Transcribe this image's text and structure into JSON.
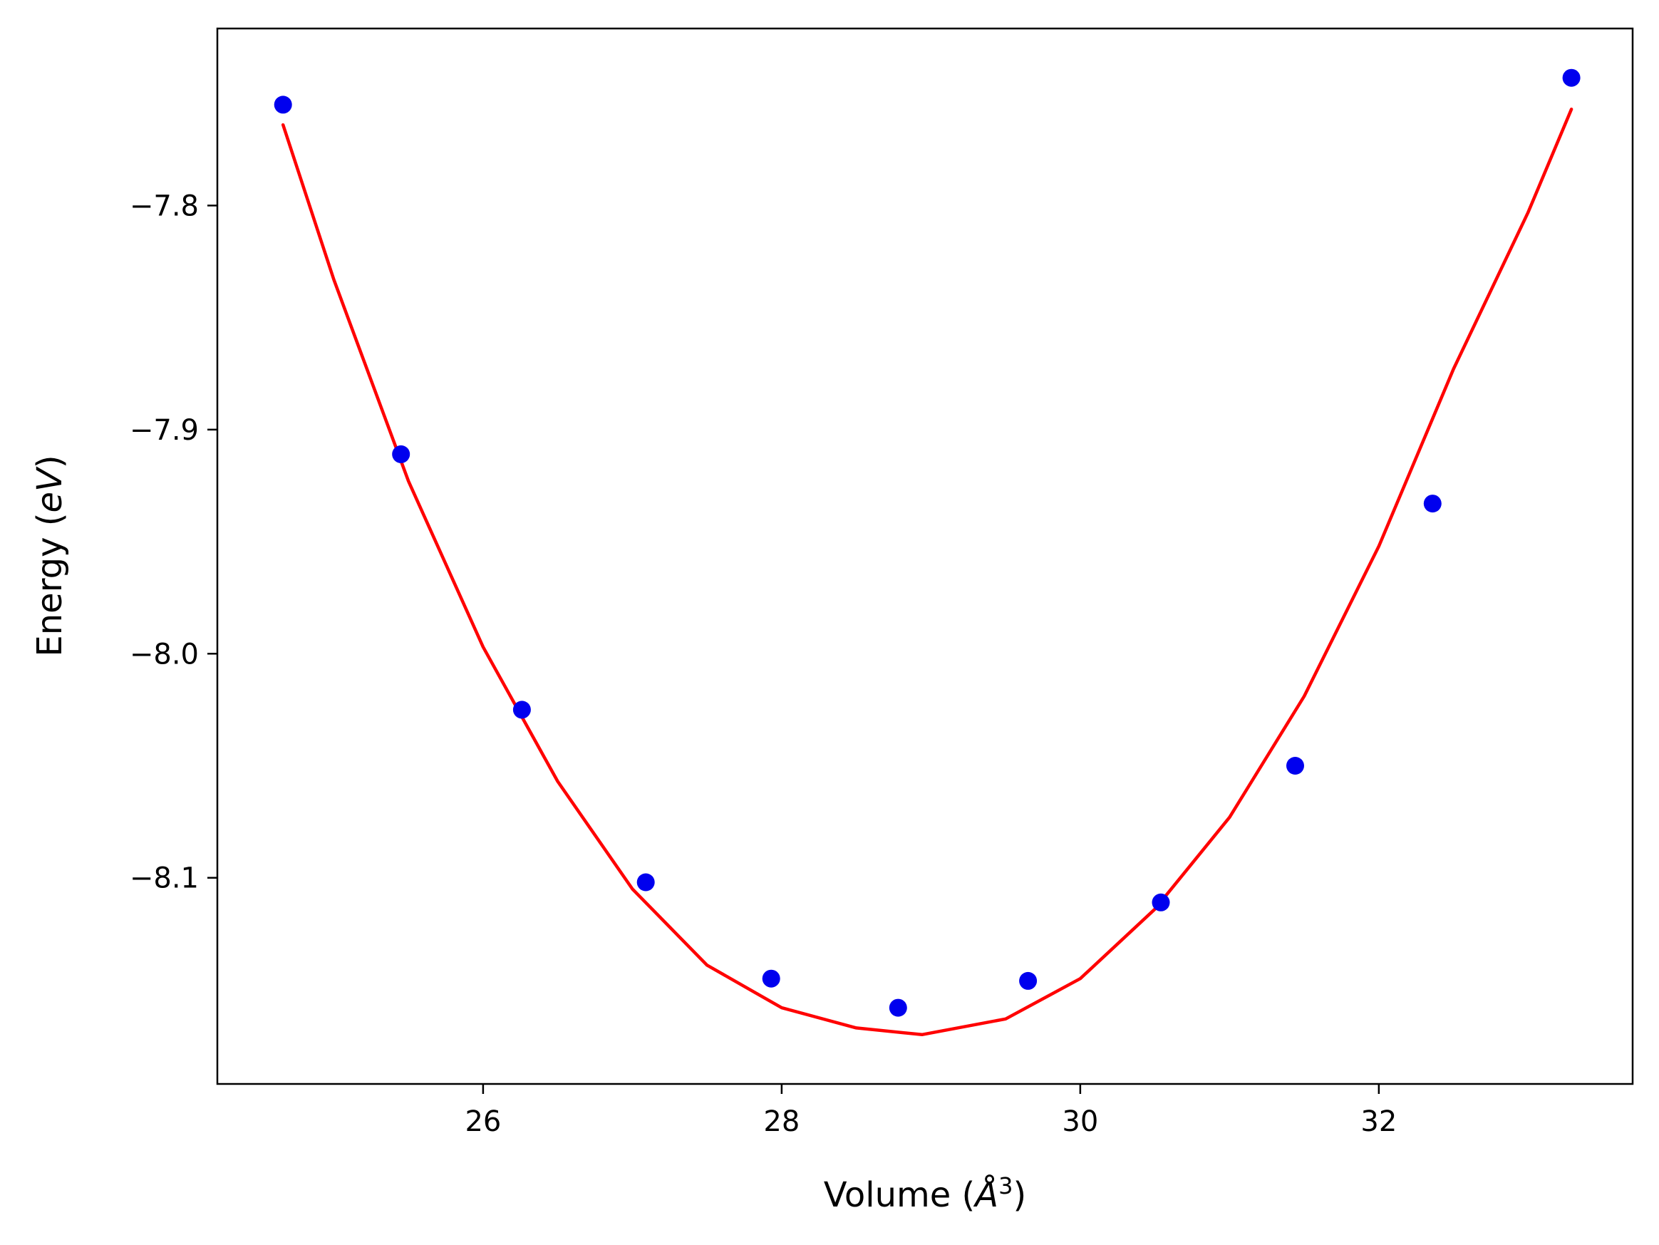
{
  "chart_data": {
    "type": "scatter",
    "xlabel": "Volume (",
    "xlabel_symbol": "Å",
    "xlabel_exponent": "3",
    "xlabel_close": ")",
    "ylabel": "Energy (",
    "ylabel_unit": "eV",
    "ylabel_close": ")",
    "xlim": [
      24.22,
      33.7
    ],
    "ylim": [
      -8.192,
      -7.721
    ],
    "x_ticks": [
      {
        "value": 26,
        "label": "26"
      },
      {
        "value": 28,
        "label": "28"
      },
      {
        "value": 30,
        "label": "30"
      },
      {
        "value": 32,
        "label": "32"
      }
    ],
    "y_ticks": [
      {
        "value": -7.8,
        "label": "−7.8"
      },
      {
        "value": -7.9,
        "label": "−7.9"
      },
      {
        "value": -8.0,
        "label": "−8.0"
      },
      {
        "value": -8.1,
        "label": "−8.1"
      }
    ],
    "grid": false,
    "legend": "none",
    "series": [
      {
        "kind": "scatter",
        "color": "#0000ee",
        "points": [
          {
            "x": 24.66,
            "y": -7.755
          },
          {
            "x": 25.45,
            "y": -7.911
          },
          {
            "x": 26.26,
            "y": -8.025
          },
          {
            "x": 27.09,
            "y": -8.102
          },
          {
            "x": 27.93,
            "y": -8.145
          },
          {
            "x": 28.78,
            "y": -8.158
          },
          {
            "x": 29.65,
            "y": -8.146
          },
          {
            "x": 30.54,
            "y": -8.111
          },
          {
            "x": 31.44,
            "y": -8.05
          },
          {
            "x": 32.36,
            "y": -7.933
          },
          {
            "x": 33.29,
            "y": -7.743
          }
        ]
      },
      {
        "kind": "line",
        "color": "#ff0000",
        "points": [
          {
            "x": 24.66,
            "y": -7.764
          },
          {
            "x": 25.0,
            "y": -7.833
          },
          {
            "x": 25.5,
            "y": -7.923
          },
          {
            "x": 26.0,
            "y": -7.997
          },
          {
            "x": 26.5,
            "y": -8.057
          },
          {
            "x": 27.0,
            "y": -8.105
          },
          {
            "x": 27.5,
            "y": -8.139
          },
          {
            "x": 28.0,
            "y": -8.158
          },
          {
            "x": 28.5,
            "y": -8.167
          },
          {
            "x": 28.94,
            "y": -8.17
          },
          {
            "x": 29.5,
            "y": -8.163
          },
          {
            "x": 30.0,
            "y": -8.145
          },
          {
            "x": 30.5,
            "y": -8.114
          },
          {
            "x": 31.0,
            "y": -8.073
          },
          {
            "x": 31.5,
            "y": -8.019
          },
          {
            "x": 32.0,
            "y": -7.952
          },
          {
            "x": 32.5,
            "y": -7.873
          },
          {
            "x": 33.0,
            "y": -7.803
          },
          {
            "x": 33.29,
            "y": -7.757
          }
        ]
      }
    ]
  }
}
